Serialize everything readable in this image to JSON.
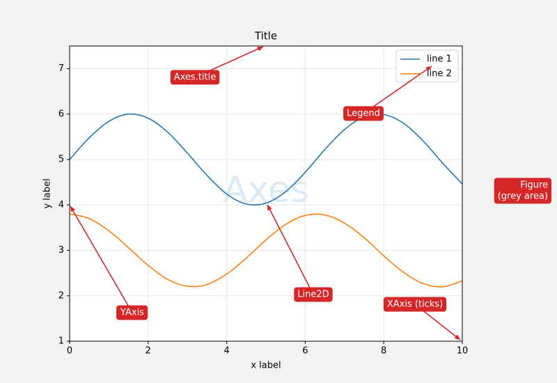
{
  "chart_data": {
    "type": "line",
    "title": "Title",
    "xlabel": "x label",
    "ylabel": "y label",
    "x": [
      0,
      0.5,
      1,
      1.5,
      2,
      2.5,
      3,
      3.5,
      4,
      4.5,
      5,
      5.5,
      6,
      6.5,
      7,
      7.5,
      8,
      8.5,
      9,
      9.5,
      10
    ],
    "series": [
      {
        "name": "line 1",
        "color": "#1f77b4",
        "values": [
          5,
          5.48,
          5.84,
          6.0,
          5.91,
          5.6,
          5.14,
          4.65,
          4.24,
          4.02,
          4.04,
          4.29,
          4.72,
          5.22,
          5.66,
          5.94,
          5.99,
          5.8,
          5.41,
          4.92,
          4.46
        ]
      },
      {
        "name": "line 2",
        "color": "#ff7f0e",
        "values": [
          3.8,
          3.7,
          3.43,
          3.06,
          2.67,
          2.36,
          2.21,
          2.25,
          2.48,
          2.83,
          3.23,
          3.57,
          3.77,
          3.78,
          3.6,
          3.28,
          2.88,
          2.52,
          2.27,
          2.2,
          2.33
        ]
      }
    ],
    "xlim": [
      0,
      10
    ],
    "ylim": [
      1,
      7.5
    ],
    "xticks": [
      0,
      2,
      4,
      6,
      8,
      10
    ],
    "yticks": [
      1,
      2,
      3,
      4,
      5,
      6,
      7
    ],
    "grid": true,
    "legend": "upper right",
    "watermark": "Axes",
    "annotations": [
      "Axes.title",
      "Legend",
      "YAxis",
      "Line2D",
      "XAxis (ticks)"
    ],
    "figure_note": [
      "Figure",
      "(grey area)"
    ]
  }
}
